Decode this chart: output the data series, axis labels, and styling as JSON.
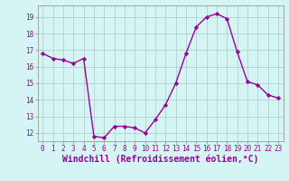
{
  "hours": [
    0,
    1,
    2,
    3,
    4,
    5,
    6,
    7,
    8,
    9,
    10,
    11,
    12,
    13,
    14,
    15,
    16,
    17,
    18,
    19,
    20,
    21,
    22,
    23
  ],
  "values": [
    16.8,
    16.5,
    16.4,
    16.2,
    16.5,
    11.8,
    11.7,
    12.4,
    12.4,
    12.3,
    12.0,
    12.8,
    13.7,
    15.0,
    16.8,
    18.4,
    19.0,
    19.2,
    18.9,
    16.9,
    15.1,
    14.9,
    14.3,
    14.1
  ],
  "line_color": "#990099",
  "marker": "D",
  "markersize": 2.2,
  "linewidth": 1.0,
  "background_color": "#d5f5f5",
  "grid_color": "#b0d0d0",
  "xlabel": "Windchill (Refroidissement éolien,°C)",
  "ylabel": "",
  "ylim": [
    11.5,
    19.7
  ],
  "yticks": [
    12,
    13,
    14,
    15,
    16,
    17,
    18,
    19
  ],
  "xticks": [
    0,
    1,
    2,
    3,
    4,
    5,
    6,
    7,
    8,
    9,
    10,
    11,
    12,
    13,
    14,
    15,
    16,
    17,
    18,
    19,
    20,
    21,
    22,
    23
  ],
  "tick_label_color": "#990099",
  "tick_fontsize": 5.5,
  "xlabel_fontsize": 7.0,
  "xlabel_color": "#990099"
}
